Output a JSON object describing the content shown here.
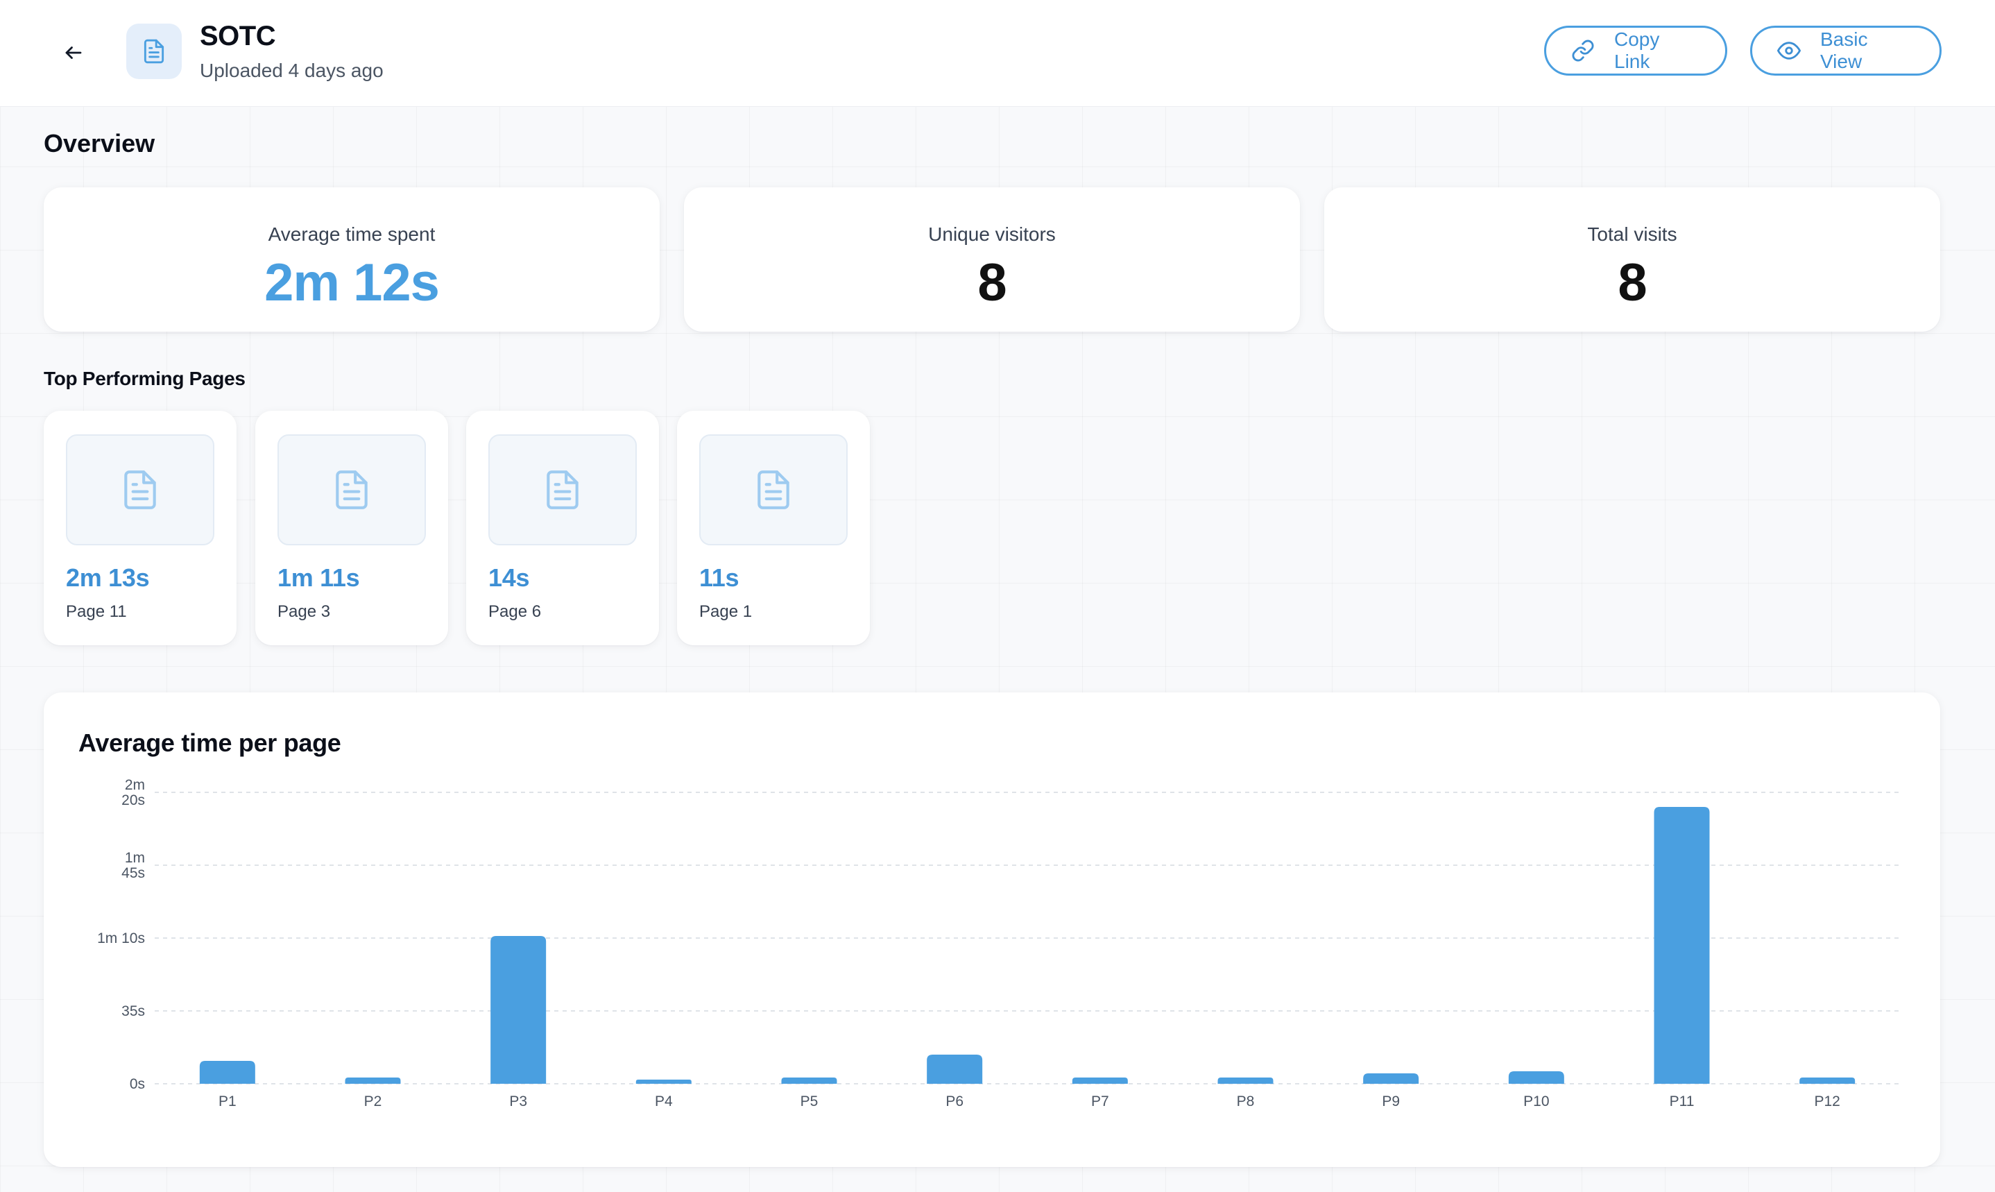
{
  "header": {
    "back_icon": "arrow-left-icon",
    "doc_icon": "document-icon",
    "title": "SOTC",
    "subtitle": "Uploaded 4 days ago",
    "copy_link_label": "Copy Link",
    "copy_link_icon": "link-icon",
    "basic_view_label": "Basic View",
    "basic_view_icon": "eye-icon"
  },
  "overview": {
    "title": "Overview",
    "stats": [
      {
        "label": "Average time spent",
        "value": "2m 12s",
        "accent": true
      },
      {
        "label": "Unique visitors",
        "value": "8",
        "accent": false
      },
      {
        "label": "Total visits",
        "value": "8",
        "accent": false
      }
    ]
  },
  "top_pages": {
    "title": "Top Performing Pages",
    "items": [
      {
        "time": "2m 13s",
        "page": "Page 11"
      },
      {
        "time": "1m 11s",
        "page": "Page 3"
      },
      {
        "time": "14s",
        "page": "Page 6"
      },
      {
        "time": "11s",
        "page": "Page 1"
      }
    ]
  },
  "colors": {
    "accent": "#4a9fe0",
    "bar": "#4a9fe0"
  },
  "chart_data": {
    "type": "bar",
    "title": "Average time per page",
    "categories": [
      "P1",
      "P2",
      "P3",
      "P4",
      "P5",
      "P6",
      "P7",
      "P8",
      "P9",
      "P10",
      "P11",
      "P12"
    ],
    "values": [
      11,
      3,
      71,
      2,
      3,
      14,
      3,
      3,
      5,
      6,
      133,
      3
    ],
    "value_unit": "seconds",
    "ylim": [
      0,
      140
    ],
    "y_ticks": [
      {
        "value": 0,
        "lines": [
          "0s"
        ]
      },
      {
        "value": 35,
        "lines": [
          "35s"
        ]
      },
      {
        "value": 70,
        "lines": [
          "1m 10s"
        ]
      },
      {
        "value": 105,
        "lines": [
          "1m",
          "45s"
        ]
      },
      {
        "value": 140,
        "lines": [
          "2m",
          "20s"
        ]
      }
    ],
    "grid": true,
    "legend": "none"
  }
}
